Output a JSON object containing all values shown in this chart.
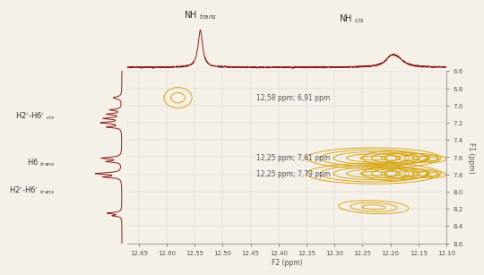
{
  "bg_color": "#f5f0e8",
  "plot_bg": "#f5f0e8",
  "main_color": "#8b2020",
  "contour_color": "#d4a000",
  "x_min": 12.67,
  "x_max": 12.1,
  "y_min": 6.6,
  "y_max": 8.6,
  "x_ticks": [
    12.65,
    12.6,
    12.55,
    12.5,
    12.45,
    12.4,
    12.35,
    12.3,
    12.25,
    12.2,
    12.15,
    12.1
  ],
  "y_ticks": [
    6.6,
    6.8,
    7.0,
    7.2,
    7.4,
    7.6,
    7.8,
    8.0,
    8.2,
    8.4,
    8.6
  ],
  "xlabel": "F2 (ppm)",
  "ylabel": "F1 (ppm)",
  "nh_trans_x": 12.23,
  "nh_cis_x": 12.5,
  "annotation1": "12,58 ppm; 6,91 ppm",
  "annotation2": "12,25 ppm; 7,61 ppm",
  "annotation3": "12,25 ppm; 7,79 ppm",
  "label_h2h6_cis": "H2’-H6’",
  "label_h2h6_cis_sub": "cis",
  "label_h6_trans": "H6",
  "label_h6_trans_sub": "trans",
  "label_h2h6_trans": "H2’-H6’",
  "label_h2h6_trans_sub": "trans"
}
